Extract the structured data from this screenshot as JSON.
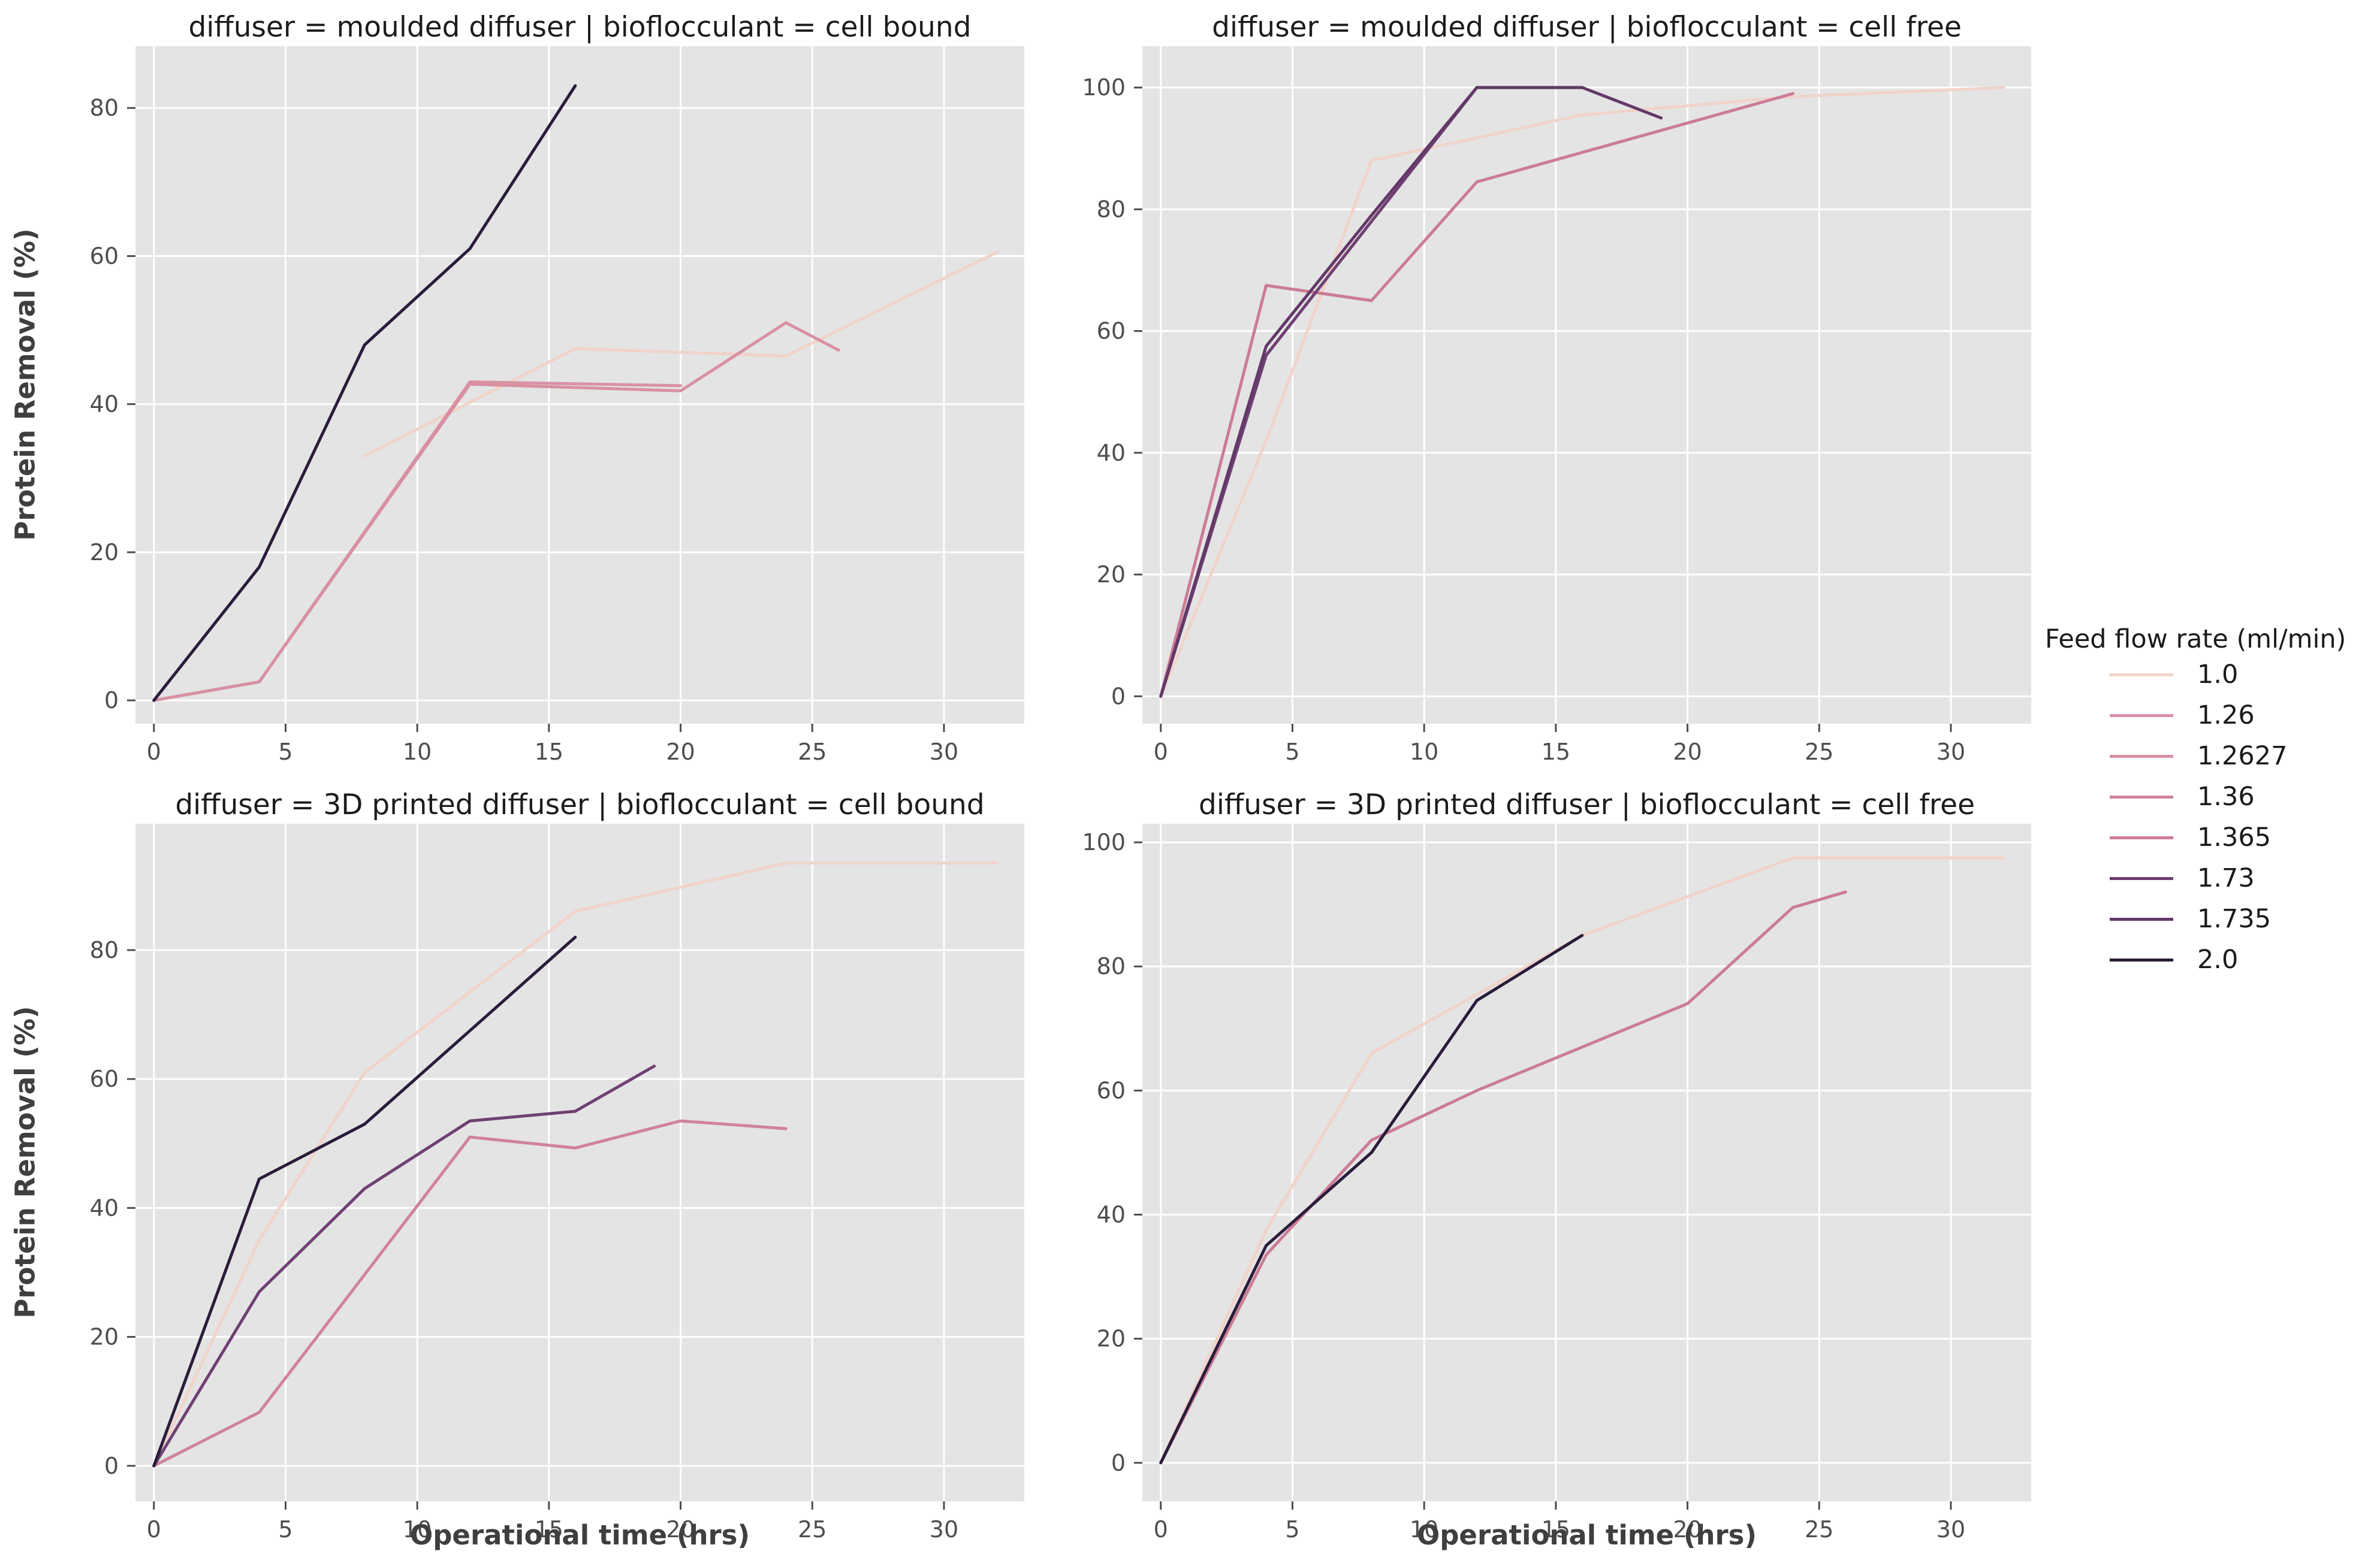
{
  "axes": {
    "x_label": "Operational time (hrs)",
    "y_label": "Protein Removal (%)"
  },
  "legend": {
    "title": "Feed flow rate (ml/min)",
    "entries": [
      {
        "label": "1.0",
        "color": "#f0d3ca"
      },
      {
        "label": "1.26",
        "color": "#d992a4"
      },
      {
        "label": "1.2627",
        "color": "#d890a2"
      },
      {
        "label": "1.36",
        "color": "#d0829c"
      },
      {
        "label": "1.365",
        "color": "#cb7c97"
      },
      {
        "label": "1.73",
        "color": "#6f4073"
      },
      {
        "label": "1.735",
        "color": "#633968"
      },
      {
        "label": "2.0",
        "color": "#2a1c3a"
      }
    ]
  },
  "style": {
    "panel_bg": "#e4e4e4",
    "grid": "#ffffff",
    "tick": "#4d4d4d",
    "line_width": 5
  },
  "chart_data": {
    "type": "line",
    "x_unit": "hrs",
    "y_unit": "%",
    "panels": [
      {
        "title": "diffuser = moulded diffuser | bioflocculant = cell bound",
        "xlim": [
          -0.7,
          33.05
        ],
        "ylim": [
          -3.15,
          88.35
        ],
        "xticks": [
          0,
          5,
          10,
          15,
          20,
          25,
          30
        ],
        "yticks": [
          0,
          20,
          40,
          60,
          80
        ],
        "series": [
          {
            "name": "1.0",
            "points": [
              [
                8,
                33
              ],
              [
                16,
                47.5
              ],
              [
                24,
                46.5
              ],
              [
                32,
                60.5
              ]
            ]
          },
          {
            "name": "1.26",
            "points": [
              [
                0,
                0
              ],
              [
                4,
                2.5
              ],
              [
                12,
                43
              ],
              [
                20,
                42.5
              ]
            ]
          },
          {
            "name": "1.2627",
            "points": [
              [
                0,
                0
              ],
              [
                4,
                2.5
              ],
              [
                12,
                42.7
              ],
              [
                20,
                41.8
              ],
              [
                24,
                51
              ],
              [
                26,
                47.3
              ]
            ]
          },
          {
            "name": "2.0",
            "points": [
              [
                0,
                0
              ],
              [
                4,
                18
              ],
              [
                8,
                48
              ],
              [
                12,
                61
              ],
              [
                16,
                83
              ]
            ]
          }
        ]
      },
      {
        "title": "diffuser = moulded diffuser | bioflocculant = cell free",
        "xlim": [
          -0.7,
          33.05
        ],
        "ylim": [
          -4.5,
          106.8
        ],
        "xticks": [
          0,
          5,
          10,
          15,
          20,
          25,
          30
        ],
        "yticks": [
          0,
          20,
          40,
          60,
          80,
          100
        ],
        "series": [
          {
            "name": "1.0",
            "points": [
              [
                0,
                0
              ],
              [
                4,
                42
              ],
              [
                8,
                88
              ],
              [
                16,
                95.5
              ],
              [
                24,
                98.5
              ],
              [
                32,
                100
              ]
            ]
          },
          {
            "name": "1.365",
            "points": [
              [
                0,
                0
              ],
              [
                4,
                67.5
              ],
              [
                8,
                65
              ],
              [
                12,
                84.5
              ],
              [
                24,
                99
              ]
            ]
          },
          {
            "name": "1.73",
            "points": [
              [
                0,
                0
              ],
              [
                4,
                56
              ],
              [
                12,
                100
              ],
              [
                16,
                100
              ]
            ]
          },
          {
            "name": "1.735",
            "points": [
              [
                0,
                0
              ],
              [
                4,
                57.5
              ],
              [
                8,
                79
              ],
              [
                12,
                100
              ],
              [
                16,
                100
              ],
              [
                19,
                95
              ]
            ]
          }
        ]
      },
      {
        "title": "diffuser = 3D printed diffuser | bioflocculant = cell bound",
        "xlim": [
          -0.7,
          33.05
        ],
        "ylim": [
          -5.5,
          99.6
        ],
        "xticks": [
          0,
          5,
          10,
          15,
          20,
          25,
          30
        ],
        "yticks": [
          0,
          20,
          40,
          60,
          80
        ],
        "series": [
          {
            "name": "1.0",
            "points": [
              [
                0,
                0
              ],
              [
                4,
                35
              ],
              [
                8,
                61
              ],
              [
                16,
                86
              ],
              [
                24,
                93.5
              ],
              [
                32,
                93.5
              ]
            ]
          },
          {
            "name": "1.36",
            "points": [
              [
                0,
                0
              ],
              [
                4,
                8.3
              ],
              [
                12,
                51
              ],
              [
                16,
                49.3
              ],
              [
                20,
                53.5
              ],
              [
                24,
                52.3
              ]
            ]
          },
          {
            "name": "1.73",
            "points": [
              [
                0,
                0
              ],
              [
                4,
                27
              ],
              [
                8,
                43
              ],
              [
                12,
                53.5
              ],
              [
                16,
                55
              ],
              [
                19,
                62
              ]
            ]
          },
          {
            "name": "2.0",
            "points": [
              [
                0,
                0
              ],
              [
                4,
                44.5
              ],
              [
                8,
                53
              ],
              [
                12,
                67.5
              ],
              [
                16,
                82
              ]
            ]
          }
        ]
      },
      {
        "title": "diffuser = 3D printed diffuser | bioflocculant = cell free",
        "xlim": [
          -0.7,
          33.05
        ],
        "ylim": [
          -6.2,
          103.0
        ],
        "xticks": [
          0,
          5,
          10,
          15,
          20,
          25,
          30
        ],
        "yticks": [
          0,
          20,
          40,
          60,
          80,
          100
        ],
        "series": [
          {
            "name": "1.0",
            "points": [
              [
                0,
                0
              ],
              [
                4,
                37.5
              ],
              [
                8,
                66
              ],
              [
                16,
                85
              ],
              [
                24,
                97.5
              ],
              [
                32,
                97.5
              ]
            ]
          },
          {
            "name": "1.365",
            "points": [
              [
                0,
                0
              ],
              [
                4,
                33.5
              ],
              [
                8,
                52
              ],
              [
                12,
                60
              ],
              [
                20,
                74
              ],
              [
                24,
                89.5
              ],
              [
                26,
                92
              ]
            ]
          },
          {
            "name": "2.0",
            "points": [
              [
                0,
                0
              ],
              [
                4,
                35
              ],
              [
                8,
                50
              ],
              [
                12,
                74.5
              ],
              [
                16,
                85
              ]
            ]
          }
        ]
      }
    ]
  }
}
